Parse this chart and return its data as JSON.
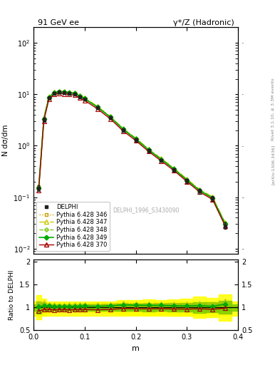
{
  "title_left": "91 GeV ee",
  "title_right": "γ*/Z (Hadronic)",
  "ylabel_main": "N dσ/dm",
  "ylabel_ratio": "Ratio to DELPHI",
  "xlabel": "m",
  "right_label_top": "Rivet 3.1.10, ≥ 3.3M events",
  "right_label_bot": "[arXiv:1306.3436]",
  "analysis_id": "DELPHI_1996_S3430090",
  "x_data": [
    0.01,
    0.02,
    0.03,
    0.04,
    0.05,
    0.06,
    0.07,
    0.08,
    0.09,
    0.1,
    0.125,
    0.15,
    0.175,
    0.2,
    0.225,
    0.25,
    0.275,
    0.3,
    0.325,
    0.35,
    0.375
  ],
  "delphi_y": [
    0.15,
    3.2,
    8.5,
    10.5,
    11.0,
    10.8,
    10.5,
    10.2,
    9.0,
    8.0,
    5.5,
    3.5,
    2.0,
    1.3,
    0.8,
    0.52,
    0.34,
    0.21,
    0.13,
    0.095,
    0.028
  ],
  "delphi_yerr": [
    0.02,
    0.3,
    0.5,
    0.5,
    0.5,
    0.5,
    0.5,
    0.5,
    0.4,
    0.4,
    0.3,
    0.2,
    0.15,
    0.1,
    0.07,
    0.04,
    0.03,
    0.02,
    0.015,
    0.01,
    0.004
  ],
  "py346_y": [
    0.155,
    3.28,
    8.65,
    10.62,
    11.15,
    10.95,
    10.65,
    10.38,
    9.18,
    8.18,
    5.58,
    3.58,
    2.08,
    1.34,
    0.825,
    0.538,
    0.348,
    0.214,
    0.134,
    0.096,
    0.0295
  ],
  "py347_y": [
    0.165,
    3.55,
    9.1,
    11.1,
    11.6,
    11.4,
    11.1,
    10.8,
    9.55,
    8.55,
    5.85,
    3.75,
    2.18,
    1.41,
    0.87,
    0.565,
    0.368,
    0.226,
    0.142,
    0.102,
    0.032
  ],
  "py348_y": [
    0.158,
    3.42,
    8.9,
    10.9,
    11.4,
    11.2,
    10.9,
    10.6,
    9.38,
    8.38,
    5.72,
    3.66,
    2.13,
    1.38,
    0.848,
    0.552,
    0.358,
    0.22,
    0.138,
    0.099,
    0.031
  ],
  "py349_y": [
    0.152,
    3.3,
    8.72,
    10.72,
    11.22,
    11.02,
    10.72,
    10.42,
    9.22,
    8.22,
    5.62,
    3.62,
    2.11,
    1.36,
    0.835,
    0.542,
    0.352,
    0.216,
    0.135,
    0.097,
    0.03
  ],
  "py370_y": [
    0.138,
    3.05,
    8.1,
    9.95,
    10.45,
    10.25,
    9.95,
    9.68,
    8.56,
    7.62,
    5.21,
    3.34,
    1.95,
    1.26,
    0.775,
    0.505,
    0.328,
    0.202,
    0.126,
    0.091,
    0.0275
  ],
  "colors": {
    "delphi": "#222222",
    "py346": "#c8a000",
    "py347": "#c8c800",
    "py348": "#80c820",
    "py349": "#00aa00",
    "py370": "#aa0000"
  },
  "band_inner_color": "#80cc00",
  "band_outer_color": "#ffff00",
  "band_inner": [
    0.93,
    1.07
  ],
  "band_outer": [
    0.82,
    1.13
  ],
  "ylim_main": [
    0.008,
    200
  ],
  "ylim_ratio": [
    0.5,
    2.05
  ],
  "xlim": [
    0.0,
    0.4
  ],
  "main_yticks": [
    0.01,
    0.1,
    1,
    10,
    100
  ],
  "ratio_yticks": [
    0.5,
    1.0,
    1.5,
    2.0
  ]
}
